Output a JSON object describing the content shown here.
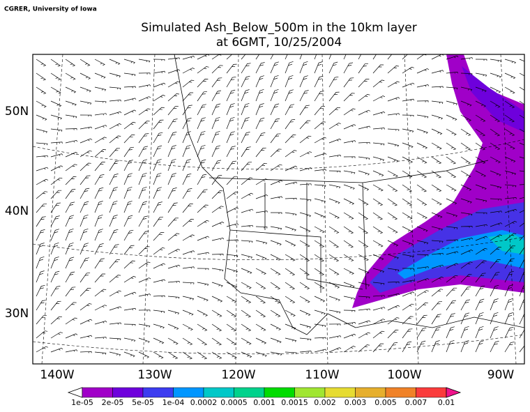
{
  "credit": "CGRER, University of Iowa",
  "title": [
    "Simulated Ash_Below_500m in the 10km layer",
    "at 6GMT, 10/25/2004"
  ],
  "map": {
    "lon_labels": [
      "140W",
      "130W",
      "120W",
      "110W",
      "100W",
      "90W"
    ],
    "lat_labels": [
      "50N",
      "40N",
      "30N"
    ]
  },
  "colorbar": {
    "labels": [
      "1e-05",
      "2e-05",
      "5e-05",
      "1e-04",
      "0.0002",
      "0.0005",
      "0.001",
      "0.0015",
      "0.002",
      "0.003",
      "0.005",
      "0.007",
      "0.01"
    ],
    "colors": [
      "#a000c8",
      "#6e00dc",
      "#3c3cf0",
      "#0096ff",
      "#00c8c8",
      "#00d28c",
      "#00dc00",
      "#a0e632",
      "#e6dc32",
      "#e6af2d",
      "#f08228",
      "#fa3c3c"
    ],
    "under_color": "#ffffff",
    "over_color": "#f0148c"
  }
}
